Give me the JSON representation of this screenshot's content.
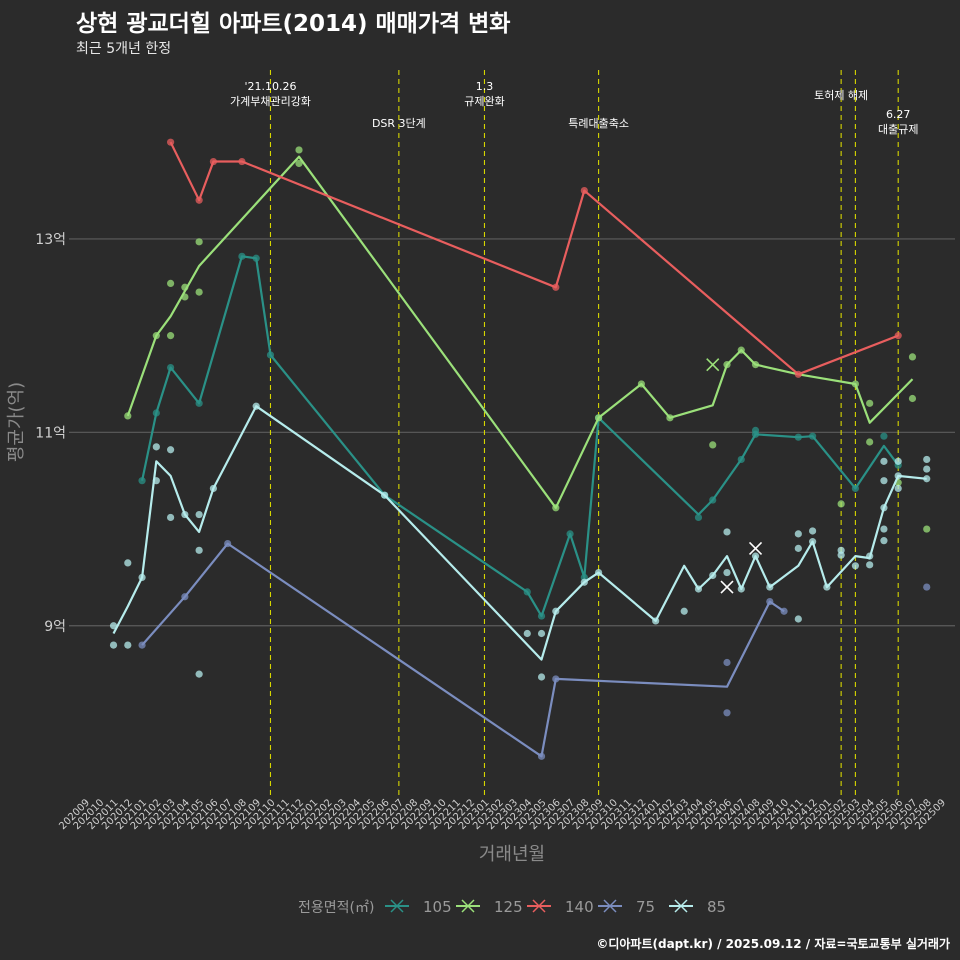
{
  "title": "상현 광교더힐 아파트(2014) 매매가격 변화",
  "subtitle": "최근 5개년 한정",
  "caption": "©디아파트(dapt.kr) / 2025.09.12 / 자료=국토교통부 실거래가",
  "chart_data": {
    "type": "line",
    "xlabel": "거래년월",
    "ylabel": "평균가(억)",
    "x_ticks": [
      "202009",
      "202010",
      "202011",
      "202012",
      "202101",
      "202102",
      "202103",
      "202104",
      "202105",
      "202106",
      "202107",
      "202108",
      "202109",
      "202110",
      "202111",
      "202112",
      "202201",
      "202202",
      "202203",
      "202204",
      "202205",
      "202206",
      "202207",
      "202208",
      "202209",
      "202210",
      "202211",
      "202212",
      "202301",
      "202302",
      "202303",
      "202304",
      "202305",
      "202306",
      "202307",
      "202308",
      "202309",
      "202310",
      "202311",
      "202312",
      "202401",
      "202402",
      "202403",
      "202404",
      "202405",
      "202406",
      "202407",
      "202408",
      "202409",
      "202410",
      "202411",
      "202412",
      "202501",
      "202502",
      "202503",
      "202504",
      "202505",
      "202506",
      "202507",
      "202508",
      "202509"
    ],
    "y_ticks": [
      {
        "value": 9,
        "label": "9억"
      },
      {
        "value": 11,
        "label": "11억"
      },
      {
        "value": 13,
        "label": "13억"
      }
    ],
    "ylim": [
      7.25,
      14.85
    ],
    "grid": true,
    "legend": {
      "title": "전용면적(㎡)",
      "position": "bottom"
    },
    "events": [
      {
        "x": "202110",
        "label": "'21.10.26\n가계부채관리강화",
        "row": 0
      },
      {
        "x": "202207",
        "label": "DSR 3단계",
        "row": 1
      },
      {
        "x": "202301",
        "label": "1.3\n규제완화",
        "row": 0
      },
      {
        "x": "202309",
        "label": "특례대출축소",
        "row": 1
      },
      {
        "x": "202502",
        "label": "토허제 해제",
        "row": 2
      },
      {
        "x": "202503",
        "label": "",
        "row": 2
      },
      {
        "x": "202506",
        "label": "6.27\n대출규제",
        "row": 3
      }
    ],
    "series": [
      {
        "name": "105",
        "color": "#2a9187",
        "line": [
          [
            "202101",
            10.5
          ],
          [
            "202102",
            11.2
          ],
          [
            "202103",
            11.67
          ],
          [
            "202105",
            11.3
          ],
          [
            "202108",
            12.82
          ],
          [
            "202109",
            12.8
          ],
          [
            "202110",
            11.8
          ],
          [
            "202206",
            10.35
          ],
          [
            "202304",
            9.35
          ],
          [
            "202305",
            9.1
          ],
          [
            "202307",
            9.95
          ],
          [
            "202308",
            9.5
          ],
          [
            "202309",
            11.15
          ],
          [
            "202404",
            10.15
          ],
          [
            "202405",
            10.3
          ],
          [
            "202407",
            10.72
          ],
          [
            "202408",
            10.98
          ],
          [
            "202411",
            10.95
          ],
          [
            "202412",
            10.96
          ],
          [
            "202503",
            10.42
          ],
          [
            "202505",
            10.86
          ],
          [
            "202506",
            10.66
          ]
        ],
        "points": [
          [
            "202101",
            10.5
          ],
          [
            "202102",
            11.2
          ],
          [
            "202103",
            11.67
          ],
          [
            "202105",
            11.3
          ],
          [
            "202108",
            12.82
          ],
          [
            "202109",
            12.8
          ],
          [
            "202110",
            11.8
          ],
          [
            "202206",
            10.35
          ],
          [
            "202304",
            9.35
          ],
          [
            "202305",
            9.1
          ],
          [
            "202307",
            9.95
          ],
          [
            "202308",
            9.5
          ],
          [
            "202309",
            11.15
          ],
          [
            "202404",
            10.12
          ],
          [
            "202405",
            10.3
          ],
          [
            "202407",
            10.72
          ],
          [
            "202408",
            10.98
          ],
          [
            "202408",
            11.02
          ],
          [
            "202411",
            10.95
          ],
          [
            "202412",
            10.96
          ],
          [
            "202503",
            10.42
          ],
          [
            "202505",
            10.96
          ],
          [
            "202506",
            10.66
          ]
        ],
        "crosses": []
      },
      {
        "name": "125",
        "color": "#9be07a",
        "line": [
          [
            "202012",
            11.17
          ],
          [
            "202102",
            12.0
          ],
          [
            "202103",
            12.2
          ],
          [
            "202105",
            12.72
          ],
          [
            "202112",
            13.85
          ],
          [
            "202306",
            10.22
          ],
          [
            "202309",
            11.15
          ],
          [
            "202312",
            11.5
          ],
          [
            "202402",
            11.15
          ],
          [
            "202405",
            11.28
          ],
          [
            "202406",
            11.7
          ],
          [
            "202407",
            11.85
          ],
          [
            "202408",
            11.7
          ],
          [
            "202411",
            11.6
          ],
          [
            "202503",
            11.5
          ],
          [
            "202504",
            11.1
          ],
          [
            "202507",
            11.55
          ]
        ],
        "points": [
          [
            "202012",
            11.17
          ],
          [
            "202102",
            12.0
          ],
          [
            "202103",
            12.0
          ],
          [
            "202103",
            12.54
          ],
          [
            "202104",
            12.5
          ],
          [
            "202104",
            12.4
          ],
          [
            "202105",
            12.97
          ],
          [
            "202105",
            12.45
          ],
          [
            "202112",
            13.92
          ],
          [
            "202112",
            13.78
          ],
          [
            "202306",
            10.22
          ],
          [
            "202309",
            11.15
          ],
          [
            "202312",
            11.5
          ],
          [
            "202402",
            11.15
          ],
          [
            "202405",
            10.87
          ],
          [
            "202406",
            11.7
          ],
          [
            "202407",
            11.85
          ],
          [
            "202408",
            11.7
          ],
          [
            "202502",
            10.26
          ],
          [
            "202503",
            11.5
          ],
          [
            "202504",
            11.3
          ],
          [
            "202504",
            10.9
          ],
          [
            "202506",
            10.48
          ],
          [
            "202507",
            11.78
          ],
          [
            "202507",
            11.35
          ],
          [
            "202508",
            10.0
          ]
        ],
        "crosses": [
          [
            "202405",
            11.7
          ]
        ]
      },
      {
        "name": "140",
        "color": "#e85e5e",
        "line": [
          [
            "202103",
            14.0
          ],
          [
            "202105",
            13.4
          ],
          [
            "202106",
            13.8
          ],
          [
            "202108",
            13.8
          ],
          [
            "202306",
            12.5
          ],
          [
            "202308",
            13.5
          ],
          [
            "202411",
            11.6
          ],
          [
            "202506",
            12.0
          ]
        ],
        "points": [
          [
            "202103",
            14.0
          ],
          [
            "202105",
            13.4
          ],
          [
            "202106",
            13.8
          ],
          [
            "202108",
            13.8
          ],
          [
            "202306",
            12.5
          ],
          [
            "202308",
            13.5
          ],
          [
            "202411",
            11.6
          ],
          [
            "202506",
            12.0
          ]
        ],
        "crosses": []
      },
      {
        "name": "75",
        "color": "#7b8dbf",
        "line": [
          [
            "202101",
            8.8
          ],
          [
            "202104",
            9.3
          ],
          [
            "202107",
            9.85
          ],
          [
            "202305",
            7.65
          ],
          [
            "202306",
            8.45
          ],
          [
            "202406",
            8.37
          ],
          [
            "202409",
            9.25
          ],
          [
            "202410",
            9.15
          ]
        ],
        "points": [
          [
            "202101",
            8.8
          ],
          [
            "202104",
            9.3
          ],
          [
            "202107",
            9.85
          ],
          [
            "202305",
            7.65
          ],
          [
            "202306",
            8.45
          ],
          [
            "202406",
            8.1
          ],
          [
            "202406",
            8.62
          ],
          [
            "202409",
            9.25
          ],
          [
            "202410",
            9.15
          ],
          [
            "202508",
            9.4
          ]
        ],
        "crosses": []
      },
      {
        "name": "85",
        "color": "#b6ecec",
        "line": [
          [
            "202011",
            8.92
          ],
          [
            "202012",
            9.2
          ],
          [
            "202101",
            9.5
          ],
          [
            "202102",
            10.7
          ],
          [
            "202103",
            10.55
          ],
          [
            "202104",
            10.15
          ],
          [
            "202105",
            9.97
          ],
          [
            "202106",
            10.42
          ],
          [
            "202109",
            11.27
          ],
          [
            "202206",
            10.35
          ],
          [
            "202305",
            8.65
          ],
          [
            "202306",
            9.15
          ],
          [
            "202308",
            9.45
          ],
          [
            "202309",
            9.55
          ],
          [
            "202401",
            9.05
          ],
          [
            "202403",
            9.62
          ],
          [
            "202404",
            9.38
          ],
          [
            "202405",
            9.52
          ],
          [
            "202406",
            9.72
          ],
          [
            "202407",
            9.38
          ],
          [
            "202408",
            9.72
          ],
          [
            "202409",
            9.4
          ],
          [
            "202411",
            9.62
          ],
          [
            "202412",
            9.87
          ],
          [
            "202501",
            9.4
          ],
          [
            "202503",
            9.72
          ],
          [
            "202504",
            9.7
          ],
          [
            "202505",
            10.22
          ],
          [
            "202506",
            10.55
          ],
          [
            "202508",
            10.52
          ]
        ],
        "points": [
          [
            "202011",
            9.0
          ],
          [
            "202011",
            8.8
          ],
          [
            "202012",
            9.65
          ],
          [
            "202012",
            8.8
          ],
          [
            "202101",
            9.5
          ],
          [
            "202102",
            10.85
          ],
          [
            "202102",
            10.5
          ],
          [
            "202103",
            10.82
          ],
          [
            "202103",
            10.12
          ],
          [
            "202104",
            10.15
          ],
          [
            "202105",
            10.15
          ],
          [
            "202105",
            9.78
          ],
          [
            "202105",
            8.5
          ],
          [
            "202106",
            10.42
          ],
          [
            "202109",
            11.27
          ],
          [
            "202206",
            10.35
          ],
          [
            "202304",
            8.92
          ],
          [
            "202305",
            8.92
          ],
          [
            "202305",
            8.47
          ],
          [
            "202306",
            9.15
          ],
          [
            "202308",
            9.45
          ],
          [
            "202309",
            9.55
          ],
          [
            "202401",
            9.05
          ],
          [
            "202403",
            9.15
          ],
          [
            "202404",
            9.38
          ],
          [
            "202405",
            9.52
          ],
          [
            "202406",
            9.97
          ],
          [
            "202406",
            9.55
          ],
          [
            "202407",
            9.38
          ],
          [
            "202408",
            9.72
          ],
          [
            "202409",
            9.4
          ],
          [
            "202411",
            9.95
          ],
          [
            "202411",
            9.8
          ],
          [
            "202411",
            9.07
          ],
          [
            "202412",
            9.98
          ],
          [
            "202412",
            9.87
          ],
          [
            "202501",
            9.4
          ],
          [
            "202502",
            9.78
          ],
          [
            "202502",
            9.73
          ],
          [
            "202503",
            9.62
          ],
          [
            "202504",
            9.63
          ],
          [
            "202504",
            9.72
          ],
          [
            "202505",
            10.7
          ],
          [
            "202505",
            10.5
          ],
          [
            "202505",
            10.22
          ],
          [
            "202505",
            10.0
          ],
          [
            "202505",
            9.88
          ],
          [
            "202506",
            10.55
          ],
          [
            "202506",
            10.7
          ],
          [
            "202506",
            10.42
          ],
          [
            "202508",
            10.72
          ],
          [
            "202508",
            10.62
          ],
          [
            "202508",
            10.52
          ]
        ],
        "crosses": [
          [
            "202406",
            9.4
          ],
          [
            "202408",
            9.8
          ]
        ]
      }
    ]
  }
}
